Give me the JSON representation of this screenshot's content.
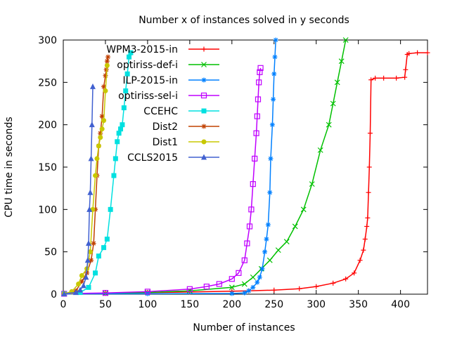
{
  "chart_data": {
    "type": "line",
    "title": "Number x of instances solved in y seconds",
    "xlabel": "Number of instances",
    "ylabel": "CPU time in seconds",
    "xlim": [
      0,
      432
    ],
    "ylim": [
      0,
      300
    ],
    "xticks": [
      0,
      50,
      100,
      150,
      200,
      250,
      300,
      350,
      400
    ],
    "yticks": [
      0,
      50,
      100,
      150,
      200,
      250,
      300
    ],
    "grid": false,
    "legend_position": "top-right",
    "series": [
      {
        "name": "WPM3-2015-in",
        "color": "#ff0000",
        "marker": "plus",
        "x": [
          1,
          50,
          100,
          150,
          200,
          220,
          250,
          280,
          300,
          320,
          335,
          345,
          352,
          356,
          358,
          360,
          361,
          362,
          363,
          364,
          365,
          370,
          380,
          395,
          405,
          406,
          408,
          410,
          420,
          432
        ],
        "y": [
          0.3,
          1.0,
          1.8,
          2.6,
          3.5,
          4.0,
          4.8,
          6.5,
          9,
          13,
          18,
          25,
          40,
          52,
          65,
          80,
          90,
          120,
          150,
          190,
          253,
          255,
          255,
          255,
          256,
          265,
          283,
          284,
          285,
          285
        ]
      },
      {
        "name": "optiriss-def-i",
        "color": "#00c000",
        "marker": "cross",
        "x": [
          1,
          50,
          100,
          150,
          200,
          215,
          225,
          235,
          245,
          255,
          265,
          275,
          285,
          295,
          305,
          315,
          320,
          325,
          330,
          335
        ],
        "y": [
          0.3,
          1.0,
          2,
          4,
          8,
          12,
          20,
          30,
          40,
          52,
          62,
          80,
          100,
          130,
          170,
          200,
          225,
          250,
          275,
          300
        ]
      },
      {
        "name": "ILP-2015-in",
        "color": "#0080ff",
        "marker": "asterisk",
        "x": [
          1,
          100,
          200,
          215,
          220,
          225,
          230,
          233,
          236,
          239,
          241,
          243,
          245,
          246,
          248,
          249,
          250,
          251,
          252
        ],
        "y": [
          0.3,
          0.5,
          0.8,
          1.5,
          4,
          8,
          14,
          20,
          30,
          50,
          65,
          82,
          120,
          160,
          200,
          230,
          260,
          280,
          300
        ]
      },
      {
        "name": "optiriss-sel-i",
        "color": "#c000ff",
        "marker": "square-open",
        "x": [
          1,
          50,
          100,
          150,
          170,
          185,
          200,
          208,
          215,
          218,
          221,
          223,
          225,
          227,
          229,
          230,
          231,
          232,
          233,
          234
        ],
        "y": [
          0.5,
          1.5,
          3,
          6,
          9,
          12,
          18,
          25,
          40,
          60,
          80,
          100,
          130,
          160,
          190,
          210,
          230,
          250,
          262,
          267
        ]
      },
      {
        "name": "CCEHC",
        "color": "#00e0e0",
        "marker": "square",
        "x": [
          1,
          20,
          30,
          38,
          42,
          48,
          52,
          56,
          60,
          62,
          64,
          66,
          68,
          70,
          72,
          74,
          76,
          78,
          80
        ],
        "y": [
          0.5,
          2,
          8,
          25,
          45,
          55,
          65,
          100,
          140,
          160,
          180,
          190,
          195,
          200,
          220,
          240,
          260,
          280,
          285
        ]
      },
      {
        "name": "Dist2",
        "color": "#c04000",
        "marker": "star",
        "x": [
          1,
          15,
          22,
          28,
          33,
          36,
          38,
          40,
          42,
          44,
          46,
          48,
          50,
          51,
          52,
          53
        ],
        "y": [
          0.5,
          4,
          15,
          25,
          40,
          60,
          100,
          140,
          175,
          190,
          210,
          245,
          258,
          265,
          275,
          280
        ]
      },
      {
        "name": "Dist1",
        "color": "#c8c800",
        "marker": "dot",
        "x": [
          1,
          10,
          18,
          22,
          28,
          32,
          35,
          38,
          40,
          42,
          44,
          46,
          48,
          50,
          52
        ],
        "y": [
          0.5,
          3,
          12,
          22,
          30,
          50,
          100,
          140,
          160,
          175,
          185,
          195,
          205,
          240,
          270
        ]
      },
      {
        "name": "CCLS2015",
        "color": "#4060d0",
        "marker": "triangle",
        "x": [
          1,
          15,
          20,
          24,
          27,
          29,
          30,
          31,
          32,
          33,
          34,
          35
        ],
        "y": [
          0.5,
          2,
          5,
          10,
          20,
          40,
          60,
          100,
          120,
          160,
          200,
          245
        ]
      }
    ]
  }
}
